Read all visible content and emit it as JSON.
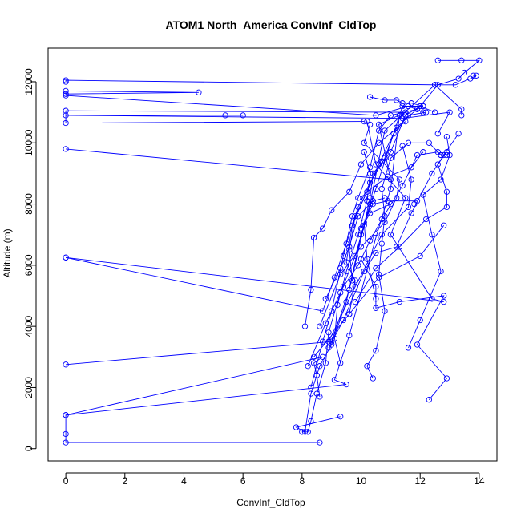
{
  "chart_data": {
    "type": "line",
    "title": "ATOM1 North_America ConvInf_CldTop",
    "xlabel": "ConvInf_CldTop",
    "ylabel": "Altitude (m)",
    "xlim": [
      -0.6,
      14.6
    ],
    "ylim": [
      -400,
      13100
    ],
    "x_ticks": [
      0,
      2,
      4,
      6,
      8,
      10,
      12,
      14
    ],
    "y_ticks": [
      0,
      2000,
      4000,
      6000,
      8000,
      10000,
      12000
    ],
    "x_tick_labels": [
      "0",
      "2",
      "4",
      "6",
      "8",
      "10",
      "12",
      "14"
    ],
    "y_tick_labels": [
      "0",
      "2000",
      "4000",
      "6000",
      "8000",
      "10000",
      "12000"
    ],
    "grid": false,
    "marker": "open-circle",
    "series_color": "#0000ff",
    "series": [
      {
        "points": [
          [
            8.6,
            200
          ],
          [
            0,
            200
          ],
          [
            0,
            480
          ],
          [
            0,
            1100
          ],
          [
            9.5,
            2100
          ],
          [
            9.1,
            2250
          ],
          [
            9.6,
            3700
          ],
          [
            10.5,
            6900
          ],
          [
            11.0,
            8500
          ],
          [
            11.3,
            10900
          ]
        ]
      },
      {
        "points": [
          [
            8.0,
            550
          ],
          [
            8.2,
            550
          ],
          [
            8.3,
            900
          ],
          [
            8.5,
            1800
          ],
          [
            8.8,
            2800
          ],
          [
            8.9,
            3800
          ],
          [
            9.3,
            5100
          ],
          [
            9.8,
            6300
          ],
          [
            10.3,
            8000
          ],
          [
            10.8,
            10400
          ],
          [
            12.5,
            11900
          ],
          [
            0,
            12050
          ],
          [
            0,
            12000
          ]
        ]
      },
      {
        "points": [
          [
            9.3,
            1050
          ],
          [
            7.8,
            700
          ],
          [
            8.1,
            550
          ],
          [
            8.3,
            1800
          ],
          [
            8.6,
            2700
          ],
          [
            9.0,
            3400
          ],
          [
            9.5,
            4800
          ],
          [
            10.0,
            7000
          ],
          [
            10.5,
            8500
          ],
          [
            11.4,
            11200
          ],
          [
            12.1,
            11200
          ]
        ]
      },
      {
        "points": [
          [
            8.6,
            1700
          ],
          [
            8.5,
            2400
          ],
          [
            8.4,
            2800
          ],
          [
            8.7,
            3000
          ],
          [
            0,
            1100
          ]
        ]
      },
      {
        "points": [
          [
            0,
            2750
          ],
          [
            9.0,
            3500
          ],
          [
            9.6,
            5200
          ],
          [
            10.1,
            7300
          ],
          [
            10.3,
            8200
          ],
          [
            10.4,
            9000
          ],
          [
            11.0,
            9700
          ],
          [
            11.5,
            10900
          ],
          [
            12.0,
            11200
          ],
          [
            12.6,
            11900
          ],
          [
            13.3,
            12100
          ],
          [
            13.5,
            12300
          ],
          [
            14.0,
            12700
          ],
          [
            13.4,
            12700
          ],
          [
            12.6,
            12700
          ]
        ]
      },
      {
        "points": [
          [
            0,
            6250
          ],
          [
            8.7,
            4500
          ],
          [
            9.1,
            5600
          ],
          [
            9.5,
            6700
          ],
          [
            9.9,
            7900
          ],
          [
            10.3,
            8700
          ],
          [
            10.8,
            9500
          ],
          [
            11.1,
            10300
          ],
          [
            11.6,
            10900
          ],
          [
            12.2,
            11000
          ]
        ]
      },
      {
        "points": [
          [
            0,
            6250
          ],
          [
            12.8,
            4800
          ],
          [
            12.4,
            4900
          ],
          [
            11.0,
            7000
          ],
          [
            11.5,
            8200
          ],
          [
            10.5,
            9300
          ],
          [
            10.2,
            10700
          ]
        ]
      },
      {
        "points": [
          [
            0,
            9800
          ],
          [
            11.0,
            8800
          ],
          [
            10.6,
            10600
          ],
          [
            11.5,
            11000
          ],
          [
            0,
            11050
          ],
          [
            0,
            10650
          ],
          [
            10.1,
            10700
          ]
        ]
      },
      {
        "points": [
          [
            0,
            11600
          ],
          [
            4.5,
            11650
          ],
          [
            0,
            11700
          ],
          [
            0,
            11550
          ],
          [
            10.5,
            10900
          ],
          [
            11.6,
            11200
          ],
          [
            12.1,
            11000
          ]
        ]
      },
      {
        "points": [
          [
            5.4,
            10900
          ],
          [
            6.0,
            10900
          ],
          [
            0,
            10900
          ],
          [
            11.4,
            10800
          ],
          [
            13.0,
            11000
          ],
          [
            12.6,
            10300
          ]
        ]
      },
      {
        "points": [
          [
            12.3,
            1600
          ],
          [
            12.9,
            2300
          ],
          [
            11.9,
            3400
          ],
          [
            12.8,
            5000
          ],
          [
            11.3,
            4800
          ],
          [
            10.5,
            4600
          ],
          [
            10.5,
            5300
          ],
          [
            10.0,
            6200
          ],
          [
            10.0,
            7200
          ],
          [
            10.3,
            7700
          ],
          [
            11.0,
            8000
          ],
          [
            11.8,
            8000
          ]
        ]
      },
      {
        "points": [
          [
            10.4,
            2300
          ],
          [
            10.2,
            2700
          ],
          [
            10.5,
            3200
          ],
          [
            10.8,
            4500
          ],
          [
            10.6,
            5700
          ],
          [
            10.7,
            6700
          ],
          [
            10.8,
            7600
          ],
          [
            10.7,
            8500
          ],
          [
            11.0,
            9500
          ],
          [
            11.6,
            10000
          ],
          [
            12.3,
            10000
          ],
          [
            12.7,
            9600
          ],
          [
            12.9,
            9600
          ]
        ]
      },
      {
        "points": [
          [
            9.3,
            2800
          ],
          [
            9.1,
            3600
          ],
          [
            9.2,
            4700
          ],
          [
            9.5,
            5800
          ],
          [
            9.9,
            7000
          ],
          [
            10.2,
            8100
          ],
          [
            10.3,
            9000
          ],
          [
            10.1,
            9700
          ]
        ]
      },
      {
        "points": [
          [
            8.3,
            2000
          ],
          [
            8.7,
            3500
          ],
          [
            9.0,
            4500
          ],
          [
            9.4,
            6300
          ],
          [
            9.7,
            7600
          ],
          [
            9.9,
            8200
          ],
          [
            10.3,
            9200
          ],
          [
            10.6,
            10400
          ],
          [
            11.0,
            10900
          ],
          [
            11.9,
            11100
          ]
        ]
      },
      {
        "points": [
          [
            8.1,
            4000
          ],
          [
            8.3,
            5200
          ],
          [
            8.4,
            6900
          ],
          [
            8.7,
            7200
          ],
          [
            9.0,
            7800
          ],
          [
            9.6,
            8400
          ],
          [
            10.0,
            9300
          ],
          [
            10.6,
            10000
          ],
          [
            11.5,
            10700
          ]
        ]
      },
      {
        "points": [
          [
            11.6,
            3300
          ],
          [
            12.0,
            4200
          ],
          [
            12.7,
            5800
          ],
          [
            12.4,
            7000
          ],
          [
            12.1,
            8300
          ],
          [
            12.7,
            8800
          ],
          [
            13.0,
            9600
          ],
          [
            12.9,
            10200
          ]
        ]
      },
      {
        "points": [
          [
            8.9,
            3300
          ],
          [
            9.4,
            4200
          ],
          [
            10.1,
            5800
          ],
          [
            10.5,
            6400
          ],
          [
            11.2,
            6600
          ],
          [
            11.7,
            7700
          ],
          [
            12.4,
            9000
          ],
          [
            12.8,
            9600
          ],
          [
            13.3,
            10300
          ]
        ]
      },
      {
        "points": [
          [
            10.5,
            4900
          ],
          [
            10.2,
            6200
          ],
          [
            10.1,
            7400
          ],
          [
            10.4,
            8000
          ],
          [
            10.9,
            8100
          ],
          [
            11.9,
            8100
          ]
        ]
      },
      {
        "points": [
          [
            9.6,
            4400
          ],
          [
            9.8,
            5500
          ],
          [
            9.5,
            6100
          ],
          [
            9.7,
            7300
          ],
          [
            10.1,
            8200
          ],
          [
            10.6,
            9300
          ],
          [
            11.2,
            10500
          ],
          [
            12.0,
            11200
          ],
          [
            12.5,
            11000
          ]
        ]
      },
      {
        "points": [
          [
            8.9,
            3500
          ],
          [
            9.8,
            5300
          ],
          [
            10.7,
            7000
          ],
          [
            11.6,
            7900
          ],
          [
            11.7,
            8800
          ],
          [
            11.4,
            9900
          ]
        ]
      },
      {
        "points": [
          [
            9.8,
            4800
          ],
          [
            10.5,
            5900
          ],
          [
            11.3,
            6600
          ],
          [
            12.2,
            7500
          ],
          [
            12.9,
            7900
          ],
          [
            12.9,
            8400
          ],
          [
            12.6,
            9300
          ],
          [
            12.9,
            9700
          ]
        ]
      },
      {
        "points": [
          [
            8.4,
            3000
          ],
          [
            9.6,
            4400
          ],
          [
            10.6,
            5600
          ],
          [
            12.0,
            6300
          ],
          [
            12.8,
            7300
          ]
        ]
      },
      {
        "points": [
          [
            9.7,
            5500
          ],
          [
            9.6,
            6500
          ],
          [
            9.8,
            7600
          ],
          [
            10.2,
            8400
          ],
          [
            10.9,
            8900
          ],
          [
            11.7,
            9200
          ],
          [
            12.1,
            9700
          ]
        ]
      },
      {
        "points": [
          [
            8.8,
            4900
          ],
          [
            9.3,
            5900
          ],
          [
            9.6,
            6600
          ],
          [
            9.9,
            7600
          ],
          [
            10.4,
            8100
          ],
          [
            10.8,
            8200
          ]
        ]
      },
      {
        "points": [
          [
            8.6,
            4000
          ],
          [
            9.3,
            5700
          ],
          [
            10.0,
            6600
          ],
          [
            10.8,
            7400
          ],
          [
            11.2,
            8200
          ],
          [
            11.3,
            8800
          ],
          [
            10.7,
            9400
          ],
          [
            10.1,
            10000
          ],
          [
            10.3,
            10600
          ]
        ]
      },
      {
        "points": [
          [
            8.2,
            2700
          ],
          [
            8.8,
            4100
          ],
          [
            9.4,
            5300
          ],
          [
            9.9,
            6000
          ],
          [
            10.3,
            6800
          ],
          [
            10.7,
            7500
          ],
          [
            11.4,
            8600
          ],
          [
            11.9,
            9600
          ],
          [
            12.6,
            9700
          ],
          [
            12.7,
            9600
          ]
        ]
      },
      {
        "points": [
          [
            13.8,
            12200
          ],
          [
            13.9,
            12200
          ],
          [
            13.7,
            12100
          ],
          [
            13.2,
            11900
          ],
          [
            12.5,
            11900
          ],
          [
            13.4,
            11100
          ],
          [
            13.4,
            10900
          ]
        ]
      },
      {
        "points": [
          [
            10.3,
            11500
          ],
          [
            10.8,
            11400
          ],
          [
            11.2,
            11400
          ],
          [
            11.4,
            11300
          ],
          [
            11.7,
            11300
          ],
          [
            12.1,
            11200
          ]
        ]
      }
    ]
  }
}
